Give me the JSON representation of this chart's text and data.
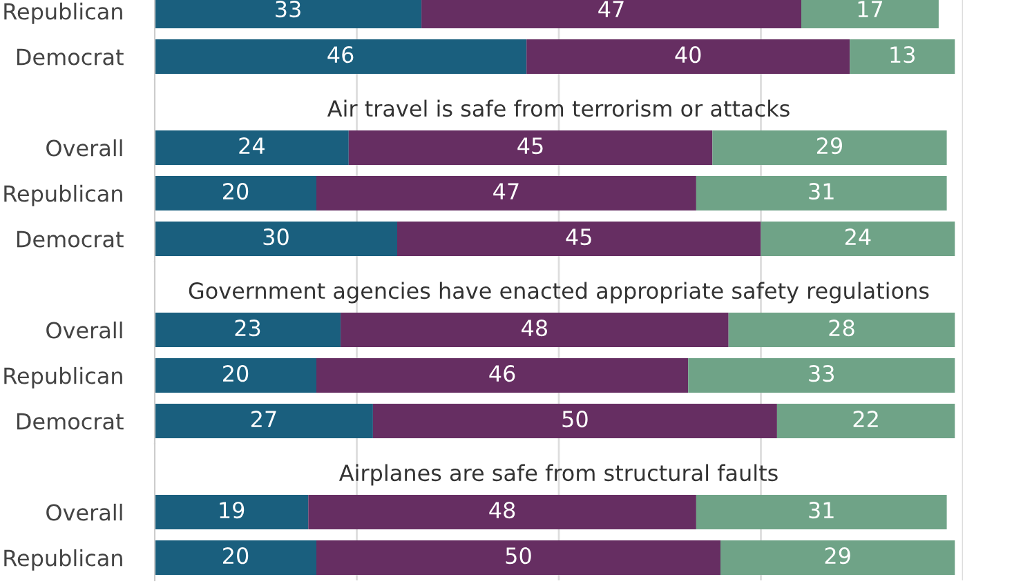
{
  "chart_data": [
    {
      "type": "bar",
      "orientation": "horizontal",
      "stacked": true,
      "categories": [
        "Republican",
        "Democrat"
      ],
      "series": [
        {
          "color": "#1a5f7e",
          "values": [
            33,
            46
          ]
        },
        {
          "color": "#662e62",
          "values": [
            47,
            40
          ]
        },
        {
          "color": "#6fa387",
          "values": [
            17,
            13
          ]
        }
      ],
      "xlim": [
        0,
        100
      ],
      "xticks": [
        {
          "value": 25,
          "label": null
        },
        {
          "value": 50,
          "label": null
        },
        {
          "value": 75,
          "label": null
        },
        {
          "value": 100,
          "label": null
        }
      ],
      "grid": "x",
      "data_labels": true,
      "tick_labels": "y"
    },
    {
      "type": "bar",
      "orientation": "horizontal",
      "stacked": true,
      "title": "Air travel is safe from terrorism or attacks",
      "categories": [
        "Overall",
        "Republican",
        "Democrat"
      ],
      "series": [
        {
          "color": "#1a5f7e",
          "values": [
            24,
            20,
            30
          ]
        },
        {
          "color": "#662e62",
          "values": [
            45,
            47,
            45
          ]
        },
        {
          "color": "#6fa387",
          "values": [
            29,
            31,
            24
          ]
        }
      ],
      "xlim": [
        0,
        100
      ],
      "xticks": [
        {
          "value": 25,
          "label": null
        },
        {
          "value": 50,
          "label": null
        },
        {
          "value": 75,
          "label": null
        },
        {
          "value": 100,
          "label": null
        }
      ],
      "grid": "x",
      "data_labels": true,
      "tick_labels": "y"
    },
    {
      "type": "bar",
      "orientation": "horizontal",
      "stacked": true,
      "title": "Government agencies have enacted appropriate safety regulations",
      "categories": [
        "Overall",
        "Republican",
        "Democrat"
      ],
      "series": [
        {
          "color": "#1a5f7e",
          "values": [
            23,
            20,
            27
          ]
        },
        {
          "color": "#662e62",
          "values": [
            48,
            46,
            50
          ]
        },
        {
          "color": "#6fa387",
          "values": [
            28,
            33,
            22
          ]
        }
      ],
      "xlim": [
        0,
        100
      ],
      "xticks": [
        {
          "value": 25,
          "label": null
        },
        {
          "value": 50,
          "label": null
        },
        {
          "value": 75,
          "label": null
        },
        {
          "value": 100,
          "label": null
        }
      ],
      "grid": "x",
      "data_labels": true,
      "tick_labels": "y"
    },
    {
      "type": "bar",
      "orientation": "horizontal",
      "stacked": true,
      "title": "Airplanes are safe from structural faults",
      "categories": [
        "Overall",
        "Republican"
      ],
      "series": [
        {
          "color": "#1a5f7e",
          "values": [
            19,
            20
          ]
        },
        {
          "color": "#662e62",
          "values": [
            48,
            50
          ]
        },
        {
          "color": "#6fa387",
          "values": [
            31,
            29
          ]
        }
      ],
      "xlim": [
        0,
        100
      ],
      "xticks": [
        {
          "value": 25,
          "label": null
        },
        {
          "value": 50,
          "label": null
        },
        {
          "value": 75,
          "label": null
        },
        {
          "value": 100,
          "label": null
        }
      ],
      "grid": "x",
      "data_labels": true,
      "tick_labels": "y"
    }
  ]
}
